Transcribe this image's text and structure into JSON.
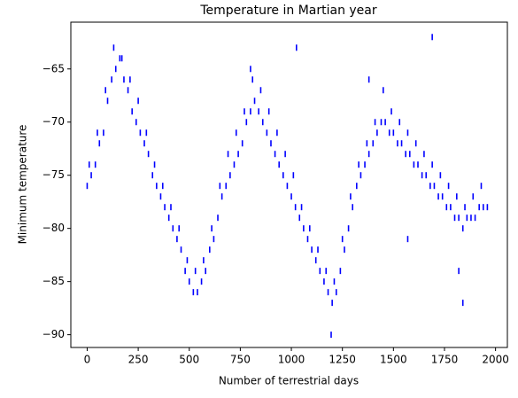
{
  "chart_data": {
    "type": "scatter",
    "title": "Temperature in Martian year",
    "xlabel": "Number of terrestrial days",
    "ylabel": "Minimum temperature",
    "color": "#0000ff",
    "xlim": [
      -80,
      2058
    ],
    "ylim": [
      -91.2,
      -60.6
    ],
    "xticks": [
      0,
      250,
      500,
      750,
      1000,
      1250,
      1500,
      1750,
      2000
    ],
    "yticks": [
      {
        "value": -90,
        "label": "−90"
      },
      {
        "value": -85,
        "label": "−85"
      },
      {
        "value": -80,
        "label": "−80"
      },
      {
        "value": -75,
        "label": "−75"
      },
      {
        "value": -70,
        "label": "−70"
      },
      {
        "value": -65,
        "label": "−65"
      }
    ],
    "x": [
      0,
      20,
      40,
      60,
      80,
      100,
      120,
      140,
      160,
      180,
      200,
      220,
      240,
      260,
      280,
      300,
      320,
      340,
      360,
      380,
      400,
      420,
      440,
      460,
      480,
      500,
      520,
      540,
      560,
      580,
      600,
      620,
      640,
      660,
      680,
      700,
      720,
      740,
      760,
      780,
      800,
      820,
      840,
      860,
      880,
      900,
      920,
      940,
      960,
      980,
      1000,
      1020,
      1040,
      1060,
      1080,
      1100,
      1120,
      1140,
      1160,
      1180,
      1200,
      1220,
      1240,
      1260,
      1280,
      1300,
      1320,
      1340,
      1360,
      1380,
      1400,
      1420,
      1440,
      1460,
      1480,
      1500,
      1520,
      1540,
      1560,
      1580,
      1600,
      1620,
      1640,
      1660,
      1680,
      1700,
      1720,
      1740,
      1760,
      1780,
      1800,
      1820,
      1840,
      1860,
      1880,
      1900,
      1920,
      1940,
      1960,
      10,
      50,
      90,
      130,
      170,
      210,
      250,
      290,
      330,
      370,
      410,
      450,
      490,
      530,
      570,
      610,
      650,
      690,
      730,
      770,
      810,
      850,
      890,
      930,
      970,
      1010,
      1050,
      1090,
      1130,
      1170,
      1210,
      1250,
      1290,
      1330,
      1370,
      1410,
      1450,
      1490,
      1530,
      1570,
      1610,
      1650,
      1690,
      1730,
      1770,
      1810,
      1850,
      1890,
      1930,
      1025,
      1690,
      1195,
      1840,
      1820,
      1570,
      1380,
      800
    ],
    "values": [
      -76,
      -75,
      -74,
      -72,
      -71,
      -68,
      -66,
      -65,
      -64,
      -66,
      -67,
      -69,
      -70,
      -71,
      -72,
      -73,
      -75,
      -76,
      -77,
      -78,
      -79,
      -80,
      -81,
      -82,
      -84,
      -85,
      -86,
      -86,
      -85,
      -84,
      -82,
      -81,
      -79,
      -77,
      -76,
      -75,
      -74,
      -73,
      -72,
      -70,
      -69,
      -68,
      -69,
      -70,
      -71,
      -72,
      -73,
      -74,
      -75,
      -76,
      -77,
      -78,
      -79,
      -80,
      -81,
      -82,
      -83,
      -84,
      -85,
      -86,
      -87,
      -86,
      -84,
      -82,
      -80,
      -78,
      -76,
      -75,
      -74,
      -73,
      -72,
      -71,
      -70,
      -70,
      -71,
      -71,
      -72,
      -72,
      -73,
      -73,
      -74,
      -74,
      -75,
      -75,
      -76,
      -76,
      -77,
      -77,
      -78,
      -78,
      -79,
      -79,
      -80,
      -79,
      -79,
      -79,
      -78,
      -78,
      -78,
      -74,
      -71,
      -67,
      -63,
      -64,
      -66,
      -68,
      -71,
      -74,
      -76,
      -78,
      -80,
      -83,
      -84,
      -83,
      -80,
      -76,
      -73,
      -71,
      -69,
      -66,
      -67,
      -69,
      -71,
      -73,
      -75,
      -78,
      -80,
      -82,
      -84,
      -85,
      -81,
      -77,
      -74,
      -72,
      -70,
      -67,
      -69,
      -70,
      -71,
      -72,
      -73,
      -74,
      -75,
      -76,
      -77,
      -78,
      -77,
      -76,
      -63,
      -62,
      -90,
      -87,
      -84,
      -81,
      -66,
      -65
    ]
  }
}
